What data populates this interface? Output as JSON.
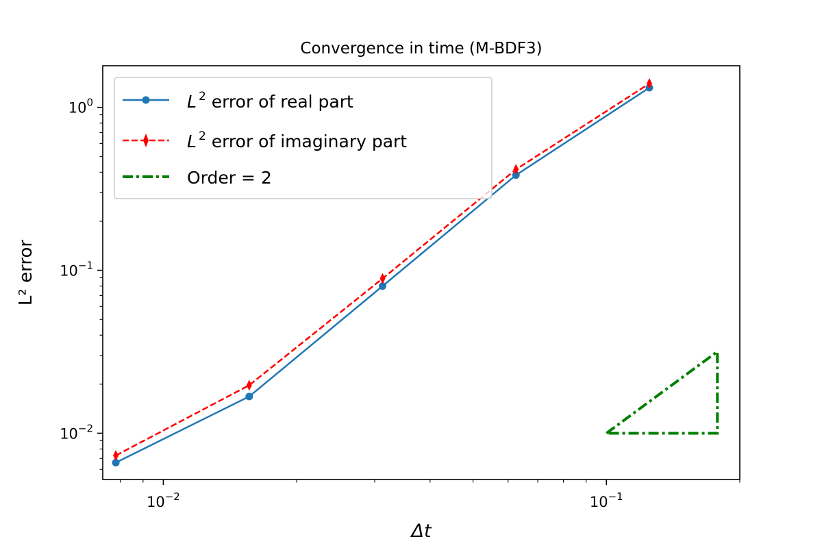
{
  "chart_data": {
    "type": "line",
    "title": "Convergence in time (M-BDF3)",
    "xlabel": "Δt",
    "ylabel": "L² error",
    "xscale": "log",
    "yscale": "log",
    "xlim": [
      0.0073,
      0.2
    ],
    "ylim": [
      0.0052,
      1.8
    ],
    "xticks": [
      {
        "value": 0.01,
        "base": "10",
        "exp": "−2"
      },
      {
        "value": 0.1,
        "base": "10",
        "exp": "−1"
      }
    ],
    "yticks": [
      {
        "value": 0.01,
        "base": "10",
        "exp": "−2"
      },
      {
        "value": 0.1,
        "base": "10",
        "exp": "−1"
      },
      {
        "value": 1,
        "base": "10",
        "exp": "0"
      }
    ],
    "grid": false,
    "legend_position": "upper-left",
    "series": [
      {
        "name": "L² error of real part",
        "legend_math": "L",
        "legend_sup": "2",
        "legend_rest": " error of real part",
        "color": "#1f77b4",
        "linestyle": "solid",
        "marker": "circle",
        "x": [
          0.0078125,
          0.015625,
          0.03125,
          0.0625,
          0.125
        ],
        "y": [
          0.0066,
          0.0168,
          0.08,
          0.384,
          1.32
        ]
      },
      {
        "name": "L² error of imaginary part",
        "legend_math": "L",
        "legend_sup": "2",
        "legend_rest": " error of imaginary part",
        "color": "#ff0000",
        "linestyle": "dashed",
        "marker": "thin_diamond",
        "x": [
          0.0078125,
          0.015625,
          0.03125,
          0.0625,
          0.125
        ],
        "y": [
          0.0073,
          0.0197,
          0.089,
          0.416,
          1.4
        ]
      },
      {
        "name": "Order = 2",
        "legend_text": "Order = 2",
        "color": "#008000",
        "linestyle": "dashdot",
        "marker": "none",
        "x": [
          0.1,
          0.178,
          0.178,
          0.1
        ],
        "y": [
          0.01,
          0.0317,
          0.01,
          0.01
        ]
      }
    ]
  }
}
